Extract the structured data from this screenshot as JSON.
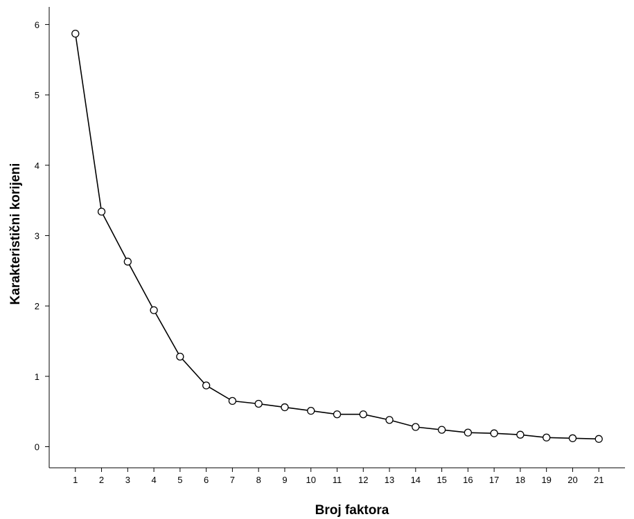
{
  "chart_data": {
    "type": "line",
    "title": "",
    "xlabel": "Broj faktora",
    "ylabel": "Karakteristični korijeni",
    "x": [
      1,
      2,
      3,
      4,
      5,
      6,
      7,
      8,
      9,
      10,
      11,
      12,
      13,
      14,
      15,
      16,
      17,
      18,
      19,
      20,
      21
    ],
    "series": [
      {
        "values": [
          5.87,
          3.34,
          2.63,
          1.94,
          1.28,
          0.87,
          0.65,
          0.61,
          0.56,
          0.51,
          0.46,
          0.46,
          0.38,
          0.28,
          0.24,
          0.2,
          0.19,
          0.17,
          0.13,
          0.12,
          0.11
        ],
        "color": "#000000",
        "marker": "open-circle"
      }
    ],
    "x_ticks": [
      "1",
      "2",
      "3",
      "4",
      "5",
      "6",
      "7",
      "8",
      "9",
      "10",
      "11",
      "12",
      "13",
      "14",
      "15",
      "16",
      "17",
      "18",
      "19",
      "20",
      "21"
    ],
    "y_ticks": [
      "0",
      "1",
      "2",
      "3",
      "4",
      "5",
      "6"
    ],
    "xlim": [
      0,
      22
    ],
    "ylim": [
      -0.3,
      6.25
    ],
    "grid": false,
    "legend": "none"
  }
}
